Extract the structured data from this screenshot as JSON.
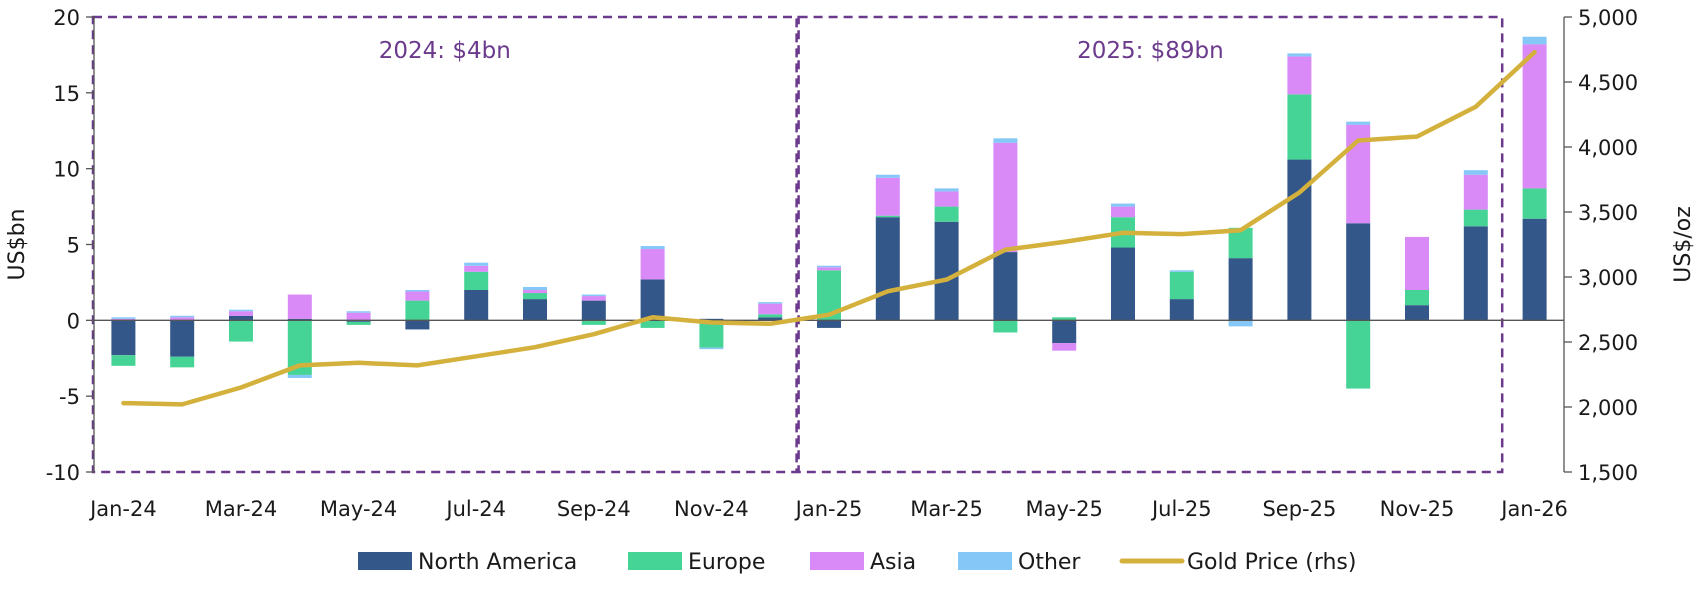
{
  "chart_data": {
    "type": "bar",
    "subtype": "stacked-bar-with-line",
    "categories": [
      "Jan-24",
      "Feb-24",
      "Mar-24",
      "Apr-24",
      "May-24",
      "Jun-24",
      "Jul-24",
      "Aug-24",
      "Sep-24",
      "Oct-24",
      "Nov-24",
      "Dec-24",
      "Jan-25",
      "Feb-25",
      "Mar-25",
      "Apr-25",
      "May-25",
      "Jun-25",
      "Jul-25",
      "Aug-25",
      "Sep-25",
      "Oct-25",
      "Nov-25",
      "Dec-25",
      "Jan-26"
    ],
    "x_tick_labels": [
      "Jan-24",
      "Mar-24",
      "May-24",
      "Jul-24",
      "Sep-24",
      "Nov-24",
      "Jan-25",
      "Mar-25",
      "May-25",
      "Jul-25",
      "Sep-25",
      "Nov-25",
      "Jan-26"
    ],
    "series": [
      {
        "name": "North America",
        "color": "#34578a",
        "axis": "left",
        "values": [
          -2.3,
          -2.4,
          0.3,
          0.1,
          -0.1,
          -0.6,
          2.0,
          1.4,
          1.3,
          2.7,
          0.1,
          0.2,
          -0.5,
          6.8,
          6.5,
          4.5,
          -1.5,
          4.8,
          1.4,
          4.1,
          10.6,
          6.4,
          1.0,
          6.2,
          6.7
        ]
      },
      {
        "name": "Europe",
        "color": "#45d496",
        "axis": "left",
        "values": [
          -0.7,
          -0.7,
          -1.4,
          -3.6,
          -0.2,
          1.3,
          1.2,
          0.4,
          -0.3,
          -0.5,
          -1.8,
          0.2,
          3.3,
          0.1,
          1.0,
          -0.8,
          0.2,
          2.0,
          1.8,
          2.0,
          4.3,
          -4.5,
          1.0,
          1.1,
          2.0
        ]
      },
      {
        "name": "Asia",
        "color": "#d98af7",
        "axis": "left",
        "values": [
          0.1,
          0.2,
          0.3,
          1.6,
          0.5,
          0.6,
          0.4,
          0.2,
          0.3,
          2.0,
          0.0,
          0.7,
          0.2,
          2.5,
          1.0,
          7.2,
          -0.5,
          0.7,
          0.0,
          0.0,
          2.5,
          6.5,
          3.5,
          2.3,
          9.5
        ]
      },
      {
        "name": "Other",
        "color": "#85c7f7",
        "axis": "left",
        "values": [
          0.1,
          0.1,
          0.1,
          -0.2,
          0.1,
          0.1,
          0.2,
          0.2,
          0.1,
          0.2,
          -0.1,
          0.1,
          0.1,
          0.2,
          0.2,
          0.3,
          0.0,
          0.2,
          0.1,
          -0.4,
          0.2,
          0.2,
          0.0,
          0.3,
          0.5
        ]
      },
      {
        "name": "Gold Price (rhs)",
        "color": "#d4b13c",
        "axis": "right",
        "type": "line",
        "values": [
          2030,
          2020,
          2150,
          2320,
          2340,
          2320,
          2390,
          2460,
          2560,
          2690,
          2650,
          2640,
          2710,
          2890,
          2980,
          3210,
          3270,
          3340,
          3330,
          3360,
          3650,
          4050,
          4080,
          4310,
          4730
        ]
      }
    ],
    "y_left": {
      "label": "US$bn",
      "min": -10,
      "max": 20,
      "ticks": [
        -10,
        -5,
        0,
        5,
        10,
        15,
        20
      ],
      "tick_labels": [
        "-10",
        "-5",
        "0",
        "5",
        "10",
        "15",
        "20"
      ]
    },
    "y_right": {
      "label": "US$/oz",
      "min": 1500,
      "max": 5000,
      "ticks": [
        1500,
        2000,
        2500,
        3000,
        3500,
        4000,
        4500,
        5000
      ],
      "tick_labels": [
        "1,500",
        "2,000",
        "2,500",
        "3,000",
        "3,500",
        "4,000",
        "4,500",
        "5,000"
      ]
    },
    "annotations": [
      {
        "text": "2024: $4bn",
        "color": "#6b3a8c",
        "box_categories": [
          "Jan-24",
          "Dec-24"
        ]
      },
      {
        "text": "2025: $89bn",
        "color": "#6b3a8c",
        "box_categories": [
          "Jan-25",
          "Dec-25"
        ]
      }
    ],
    "legend_position": "bottom",
    "grid": false
  }
}
